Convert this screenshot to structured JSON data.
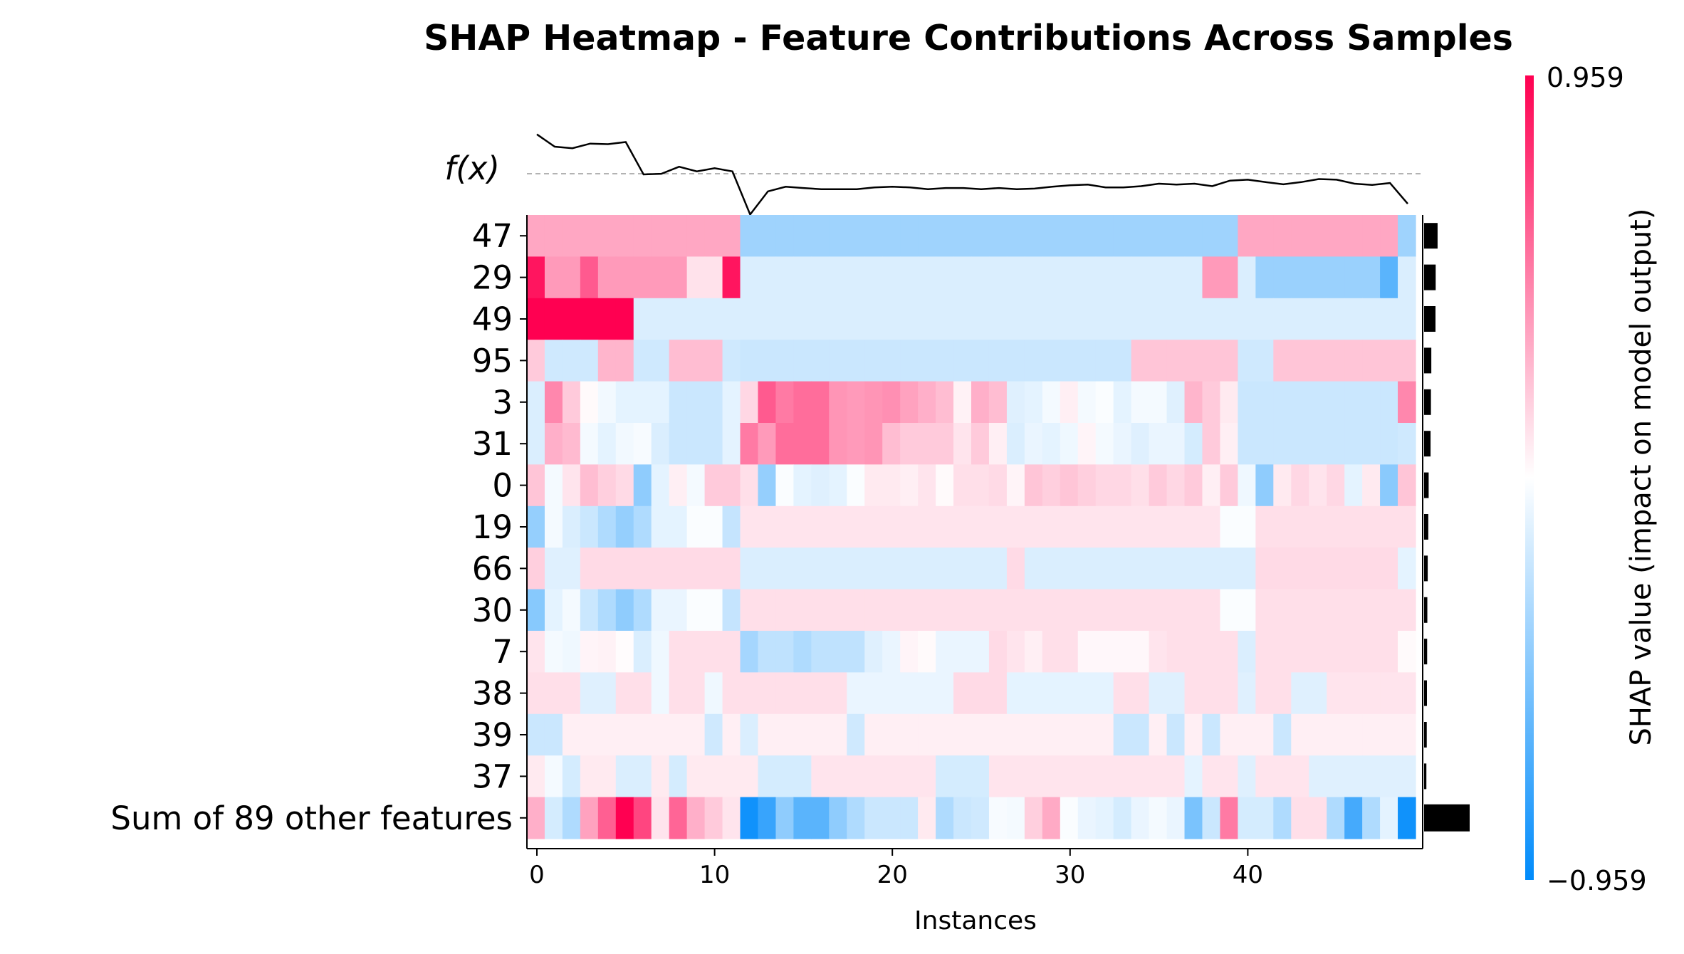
{
  "chart_data": {
    "type": "heatmap",
    "title": "SHAP Heatmap - Feature Contributions Across Samples",
    "xlabel": "Instances",
    "fx_label": "f(x)",
    "colorbar_label": "SHAP value (impact on model output)",
    "colorbar_max_label": "0.959",
    "colorbar_min_label": "−0.959",
    "vmin": -0.959,
    "vmax": 0.959,
    "x_ticks": [
      0,
      10,
      20,
      30,
      40
    ],
    "n_instances": 50,
    "colors": {
      "positive": "#ff0051",
      "negative": "#008bfb",
      "neutral": "#ffffff"
    },
    "features": [
      "47",
      "29",
      "49",
      "95",
      "3",
      "31",
      "0",
      "19",
      "66",
      "30",
      "7",
      "38",
      "39",
      "37",
      "Sum of 89 other features"
    ],
    "row_importance": [
      0.071,
      0.061,
      0.06,
      0.038,
      0.036,
      0.034,
      0.024,
      0.022,
      0.019,
      0.017,
      0.016,
      0.015,
      0.014,
      0.012,
      0.24
    ],
    "fx": [
      0.64,
      0.6,
      0.595,
      0.61,
      0.608,
      0.615,
      0.51,
      0.512,
      0.535,
      0.52,
      0.53,
      0.52,
      0.38,
      0.455,
      0.47,
      0.466,
      0.462,
      0.462,
      0.462,
      0.468,
      0.47,
      0.468,
      0.462,
      0.466,
      0.466,
      0.462,
      0.466,
      0.462,
      0.464,
      0.47,
      0.475,
      0.477,
      0.468,
      0.468,
      0.472,
      0.48,
      0.477,
      0.48,
      0.472,
      0.49,
      0.493,
      0.485,
      0.478,
      0.485,
      0.495,
      0.493,
      0.48,
      0.476,
      0.482,
      0.415
    ],
    "fx_baseline": 0.5,
    "values": [
      [
        0.33,
        0.33,
        0.33,
        0.33,
        0.33,
        0.33,
        0.33,
        0.33,
        0.33,
        0.33,
        0.33,
        0.33,
        -0.36,
        -0.36,
        -0.36,
        -0.36,
        -0.36,
        -0.36,
        -0.36,
        -0.36,
        -0.36,
        -0.36,
        -0.36,
        -0.36,
        -0.36,
        -0.36,
        -0.36,
        -0.36,
        -0.36,
        -0.36,
        -0.36,
        -0.36,
        -0.36,
        -0.36,
        -0.36,
        -0.36,
        -0.36,
        -0.36,
        -0.36,
        -0.36,
        0.33,
        0.33,
        0.33,
        0.33,
        0.33,
        0.33,
        0.33,
        0.33,
        0.33,
        -0.36
      ],
      [
        0.88,
        0.38,
        0.38,
        0.62,
        0.38,
        0.38,
        0.38,
        0.38,
        0.38,
        0.11,
        0.11,
        0.88,
        -0.14,
        -0.14,
        -0.14,
        -0.14,
        -0.14,
        -0.14,
        -0.14,
        -0.14,
        -0.14,
        -0.14,
        -0.14,
        -0.14,
        -0.14,
        -0.14,
        -0.14,
        -0.14,
        -0.14,
        -0.14,
        -0.14,
        -0.14,
        -0.14,
        -0.14,
        -0.14,
        -0.14,
        -0.14,
        -0.14,
        0.38,
        0.38,
        -0.14,
        -0.38,
        -0.38,
        -0.38,
        -0.38,
        -0.38,
        -0.38,
        -0.38,
        -0.62,
        -0.14
      ],
      [
        0.959,
        0.959,
        0.959,
        0.959,
        0.959,
        0.959,
        -0.14,
        -0.14,
        -0.14,
        -0.14,
        -0.14,
        -0.14,
        -0.14,
        -0.14,
        -0.14,
        -0.14,
        -0.14,
        -0.14,
        -0.14,
        -0.14,
        -0.14,
        -0.14,
        -0.14,
        -0.14,
        -0.14,
        -0.14,
        -0.14,
        -0.14,
        -0.14,
        -0.14,
        -0.14,
        -0.14,
        -0.14,
        -0.14,
        -0.14,
        -0.14,
        -0.14,
        -0.14,
        -0.14,
        -0.14,
        -0.14,
        -0.14,
        -0.14,
        -0.14,
        -0.14,
        -0.14,
        -0.14,
        -0.14,
        -0.14,
        -0.14
      ],
      [
        0.2,
        -0.18,
        -0.18,
        -0.18,
        0.28,
        0.28,
        -0.18,
        -0.18,
        0.25,
        0.25,
        0.25,
        -0.18,
        -0.2,
        -0.2,
        -0.2,
        -0.2,
        -0.2,
        -0.2,
        -0.2,
        -0.2,
        -0.2,
        -0.2,
        -0.2,
        -0.2,
        -0.2,
        -0.2,
        -0.2,
        -0.2,
        -0.2,
        -0.2,
        -0.2,
        -0.2,
        -0.2,
        -0.2,
        0.22,
        0.22,
        0.22,
        0.22,
        0.22,
        0.22,
        -0.18,
        -0.18,
        0.22,
        0.22,
        0.22,
        0.22,
        0.22,
        0.22,
        0.22,
        0.22
      ],
      [
        -0.14,
        0.45,
        0.2,
        0.02,
        -0.05,
        -0.1,
        -0.1,
        -0.1,
        -0.2,
        -0.2,
        -0.2,
        -0.1,
        0.15,
        0.62,
        0.5,
        0.55,
        0.55,
        0.4,
        0.38,
        0.4,
        0.42,
        0.35,
        0.3,
        0.25,
        0.05,
        0.3,
        0.25,
        -0.12,
        -0.1,
        -0.04,
        0.06,
        -0.04,
        -0.02,
        -0.1,
        -0.04,
        -0.04,
        -0.12,
        0.28,
        0.2,
        0.08,
        -0.2,
        -0.2,
        -0.2,
        -0.2,
        -0.2,
        -0.2,
        -0.2,
        -0.2,
        -0.2,
        0.45
      ],
      [
        -0.14,
        0.3,
        0.26,
        -0.04,
        -0.1,
        -0.05,
        -0.03,
        -0.14,
        -0.2,
        -0.2,
        -0.2,
        -0.1,
        0.5,
        0.38,
        0.55,
        0.55,
        0.55,
        0.4,
        0.38,
        0.4,
        0.25,
        0.2,
        0.2,
        0.2,
        0.1,
        0.2,
        0.06,
        -0.14,
        -0.08,
        -0.1,
        -0.06,
        0.04,
        -0.04,
        -0.08,
        -0.12,
        -0.08,
        -0.08,
        -0.16,
        0.2,
        0.06,
        -0.2,
        -0.2,
        -0.2,
        -0.2,
        -0.2,
        -0.2,
        -0.2,
        -0.2,
        -0.2,
        -0.18
      ],
      [
        0.22,
        -0.04,
        0.1,
        0.25,
        0.18,
        0.14,
        -0.42,
        -0.1,
        0.06,
        -0.04,
        0.2,
        0.2,
        0.12,
        -0.4,
        -0.02,
        -0.1,
        -0.12,
        -0.1,
        -0.02,
        0.08,
        0.08,
        0.06,
        0.1,
        0.02,
        0.12,
        0.12,
        0.14,
        0.04,
        0.22,
        0.18,
        0.22,
        0.18,
        0.15,
        0.15,
        0.12,
        0.2,
        0.15,
        0.2,
        0.06,
        0.2,
        -0.06,
        -0.42,
        0.08,
        0.15,
        0.1,
        0.15,
        -0.1,
        0.08,
        -0.44,
        0.22
      ],
      [
        -0.4,
        -0.04,
        -0.14,
        -0.2,
        -0.3,
        -0.4,
        -0.3,
        -0.1,
        -0.1,
        -0.02,
        -0.02,
        -0.22,
        0.1,
        0.1,
        0.1,
        0.1,
        0.1,
        0.1,
        0.1,
        0.1,
        0.1,
        0.1,
        0.1,
        0.1,
        0.1,
        0.1,
        0.1,
        0.1,
        0.1,
        0.1,
        0.1,
        0.1,
        0.1,
        0.1,
        0.1,
        0.1,
        0.1,
        0.1,
        0.1,
        -0.02,
        -0.02,
        0.12,
        0.12,
        0.12,
        0.12,
        0.12,
        0.12,
        0.12,
        0.12,
        0.12
      ],
      [
        0.18,
        -0.12,
        -0.12,
        0.14,
        0.14,
        0.14,
        0.14,
        0.14,
        0.14,
        0.14,
        0.14,
        0.14,
        -0.14,
        -0.14,
        -0.14,
        -0.14,
        -0.14,
        -0.14,
        -0.14,
        -0.14,
        -0.14,
        -0.14,
        -0.14,
        -0.14,
        -0.14,
        -0.14,
        -0.14,
        0.14,
        -0.14,
        -0.14,
        -0.14,
        -0.14,
        -0.14,
        -0.14,
        -0.14,
        -0.14,
        -0.14,
        -0.14,
        -0.14,
        -0.14,
        -0.14,
        0.14,
        0.14,
        0.14,
        0.14,
        0.14,
        0.14,
        0.14,
        0.14,
        -0.1
      ],
      [
        -0.45,
        -0.1,
        -0.04,
        -0.2,
        -0.3,
        -0.42,
        -0.3,
        -0.08,
        -0.08,
        -0.02,
        -0.02,
        -0.22,
        0.12,
        0.12,
        0.12,
        0.12,
        0.12,
        0.12,
        0.12,
        0.12,
        0.12,
        0.12,
        0.12,
        0.12,
        0.12,
        0.12,
        0.12,
        0.12,
        0.12,
        0.12,
        0.12,
        0.12,
        0.12,
        0.12,
        0.12,
        0.12,
        0.12,
        0.12,
        0.12,
        -0.02,
        -0.02,
        0.12,
        0.12,
        0.12,
        0.12,
        0.12,
        0.12,
        0.12,
        0.12,
        0.12
      ],
      [
        0.1,
        -0.04,
        -0.06,
        0.04,
        0.05,
        0.01,
        -0.14,
        -0.06,
        0.12,
        0.12,
        0.12,
        0.12,
        -0.34,
        -0.24,
        -0.24,
        -0.3,
        -0.24,
        -0.24,
        -0.24,
        -0.12,
        -0.08,
        0.04,
        0.02,
        -0.08,
        -0.08,
        -0.08,
        0.14,
        0.1,
        0.06,
        0.12,
        0.12,
        0.03,
        0.03,
        0.03,
        0.03,
        0.1,
        0.12,
        0.12,
        0.12,
        0.12,
        -0.14,
        0.12,
        0.12,
        0.12,
        0.12,
        0.12,
        0.12,
        0.12,
        0.12,
        0.02
      ],
      [
        0.12,
        0.12,
        0.12,
        -0.12,
        -0.12,
        0.12,
        0.12,
        -0.06,
        0.12,
        0.12,
        -0.06,
        0.12,
        0.12,
        0.12,
        0.12,
        0.12,
        0.12,
        0.12,
        -0.08,
        -0.08,
        -0.08,
        -0.08,
        -0.08,
        -0.08,
        0.14,
        0.14,
        0.14,
        -0.1,
        -0.1,
        -0.1,
        -0.1,
        -0.1,
        -0.1,
        0.12,
        0.12,
        -0.12,
        -0.12,
        0.12,
        0.12,
        0.12,
        -0.12,
        0.12,
        0.12,
        -0.12,
        -0.12,
        0.1,
        0.1,
        0.1,
        0.1,
        0.1
      ],
      [
        -0.2,
        -0.2,
        0.06,
        0.06,
        0.06,
        0.06,
        0.06,
        0.06,
        0.06,
        0.06,
        -0.18,
        0.06,
        -0.14,
        0.06,
        0.06,
        0.06,
        0.06,
        0.06,
        -0.18,
        0.06,
        0.06,
        0.06,
        0.06,
        0.06,
        0.06,
        0.06,
        0.06,
        0.06,
        0.06,
        0.06,
        0.06,
        0.06,
        0.06,
        -0.2,
        -0.2,
        0.06,
        -0.2,
        0.06,
        -0.2,
        0.06,
        0.06,
        0.06,
        -0.2,
        0.06,
        0.06,
        0.06,
        0.06,
        0.06,
        0.06,
        0.06
      ],
      [
        0.08,
        -0.04,
        -0.16,
        0.08,
        0.08,
        -0.14,
        -0.14,
        0.08,
        -0.16,
        0.08,
        0.08,
        0.08,
        0.08,
        -0.16,
        -0.16,
        -0.16,
        0.1,
        0.1,
        0.1,
        0.1,
        0.1,
        0.1,
        0.1,
        -0.16,
        -0.16,
        -0.16,
        0.1,
        0.1,
        0.1,
        0.1,
        0.1,
        0.1,
        0.1,
        0.1,
        0.1,
        0.1,
        0.1,
        -0.1,
        0.1,
        0.1,
        -0.12,
        0.1,
        0.1,
        0.1,
        -0.12,
        -0.12,
        -0.12,
        -0.12,
        -0.12,
        -0.12
      ],
      [
        0.3,
        -0.16,
        -0.3,
        0.35,
        0.6,
        0.959,
        0.7,
        0.1,
        0.58,
        0.3,
        0.2,
        0.1,
        -0.9,
        -0.75,
        -0.42,
        -0.62,
        -0.62,
        -0.42,
        -0.3,
        -0.2,
        -0.2,
        -0.2,
        0.08,
        -0.3,
        -0.2,
        -0.18,
        -0.03,
        -0.04,
        0.18,
        0.32,
        -0.02,
        -0.08,
        -0.1,
        -0.16,
        -0.08,
        -0.04,
        -0.08,
        -0.5,
        -0.2,
        0.5,
        -0.16,
        -0.16,
        -0.3,
        0.12,
        0.12,
        -0.3,
        -0.7,
        -0.3,
        -0.1,
        -0.9
      ]
    ]
  }
}
